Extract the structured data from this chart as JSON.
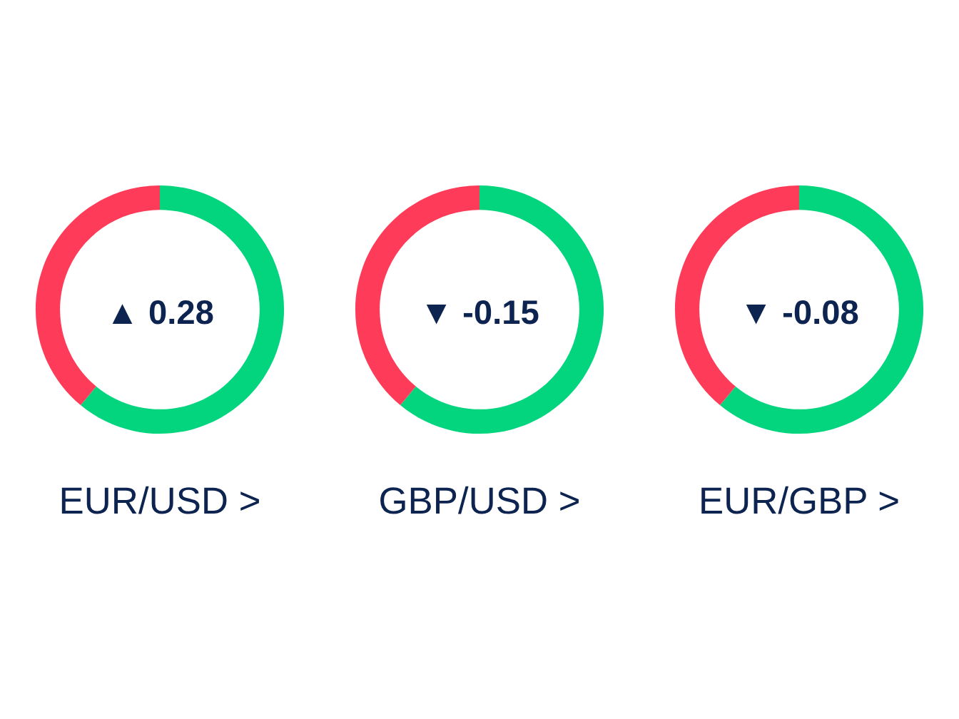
{
  "chart_data": [
    {
      "type": "donut",
      "title": "EUR/USD >",
      "categories": [
        null,
        null
      ],
      "values": [
        61,
        39
      ],
      "colors": [
        "#03d57f",
        "#fe3b58"
      ],
      "annotations": [
        "▲ 0.28"
      ]
    },
    {
      "type": "donut",
      "title": "GBP/USD >",
      "categories": [
        null,
        null
      ],
      "values": [
        61,
        39
      ],
      "colors": [
        "#03d57f",
        "#fe3b58"
      ],
      "annotations": [
        "▼ -0.15"
      ]
    },
    {
      "type": "donut",
      "title": "EUR/GBP >",
      "categories": [
        null,
        null
      ],
      "values": [
        61,
        39
      ],
      "colors": [
        "#03d57f",
        "#fe3b58"
      ],
      "annotations": [
        "▼ -0.08"
      ]
    }
  ]
}
